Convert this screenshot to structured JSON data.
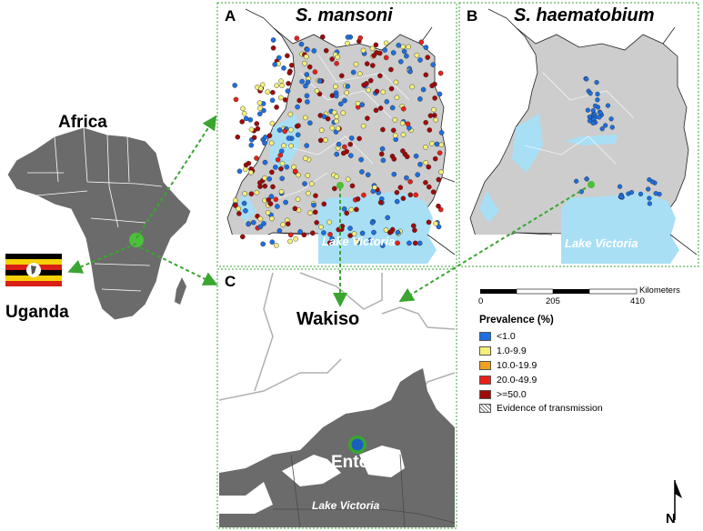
{
  "labels": {
    "africa": "Africa",
    "uganda": "Uganda",
    "wakiso": "Wakiso",
    "entebbe": "Entebbe",
    "lake_a": "Lake Victoria",
    "lake_b": "Lake Victoria",
    "lake_c": "Lake Victoria"
  },
  "panels": {
    "a": {
      "letter": "A",
      "title": "S. mansoni"
    },
    "b": {
      "letter": "B",
      "title": "S. haematobium"
    },
    "c": {
      "letter": "C"
    }
  },
  "scale_bar": {
    "ticks": [
      "0",
      "205",
      "410"
    ],
    "unit": "Kilometers"
  },
  "legend": {
    "title": "Prevalence (%)",
    "items": [
      {
        "label": "<1.0",
        "color": "#1e6fe0"
      },
      {
        "label": "1.0-9.9",
        "color": "#f5f07a"
      },
      {
        "label": "10.0-19.9",
        "color": "#f0a020"
      },
      {
        "label": "20.0-49.9",
        "color": "#e8201a"
      },
      {
        "label": ">=50.0",
        "color": "#a00a0a"
      }
    ],
    "transmission_label": "Evidence of transmission"
  },
  "north_label": "N",
  "colors": {
    "connector": "#3aa530",
    "land_africa": "#6b6b6b",
    "land_uganda": "#cdcdcd",
    "water": "#a8dff5",
    "wakiso_water": "#6b6b6b"
  }
}
